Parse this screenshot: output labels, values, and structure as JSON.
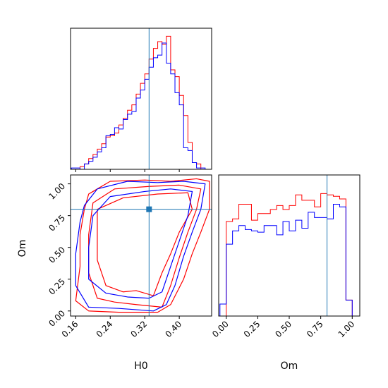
{
  "chart_data": {
    "type": "corner",
    "parameters": [
      "H0",
      "Om"
    ],
    "truths": {
      "H0": 0.33,
      "Om": 0.8
    },
    "colors": {
      "series_a": "#ff0000",
      "series_b": "#0000ff",
      "truth": "#1f77b4",
      "frame": "#000000"
    },
    "panels": [
      {
        "kind": "histogram",
        "param": "H0",
        "xlim": [
          0.148,
          0.475
        ],
        "ylim": [
          0,
          1.05
        ],
        "bin_edges": [
          0.15,
          0.16,
          0.17,
          0.18,
          0.19,
          0.2,
          0.21,
          0.22,
          0.23,
          0.24,
          0.25,
          0.26,
          0.27,
          0.28,
          0.29,
          0.3,
          0.31,
          0.32,
          0.33,
          0.34,
          0.35,
          0.36,
          0.37,
          0.38,
          0.39,
          0.4,
          0.41,
          0.42,
          0.43,
          0.44,
          0.45,
          0.46,
          0.47
        ],
        "series": [
          {
            "color_key": "series_a",
            "values": [
              0.0,
              0.0,
              0.02,
              0.04,
              0.08,
              0.11,
              0.15,
              0.19,
              0.24,
              0.25,
              0.27,
              0.33,
              0.38,
              0.44,
              0.48,
              0.56,
              0.64,
              0.71,
              0.82,
              0.9,
              0.95,
              0.93,
              0.99,
              0.74,
              0.69,
              0.55,
              0.4,
              0.2,
              0.05,
              0.04,
              0.0,
              0.0
            ]
          },
          {
            "color_key": "series_b",
            "values": [
              0.01,
              0.01,
              0.0,
              0.04,
              0.06,
              0.09,
              0.13,
              0.16,
              0.25,
              0.26,
              0.31,
              0.3,
              0.37,
              0.41,
              0.43,
              0.53,
              0.59,
              0.67,
              0.76,
              0.83,
              0.85,
              0.94,
              0.79,
              0.71,
              0.57,
              0.48,
              0.16,
              0.14,
              0.05,
              0.01,
              0.01,
              0.0
            ]
          }
        ]
      },
      {
        "kind": "contour",
        "xparam": "H0",
        "yparam": "Om",
        "xlim": [
          0.148,
          0.475
        ],
        "ylim": [
          -0.04,
          1.07
        ],
        "xticks": [
          0.16,
          0.24,
          0.32,
          0.4
        ],
        "xtick_labels": [
          "0.16",
          "0.24",
          "0.32",
          "0.40"
        ],
        "yticks": [
          0.0,
          0.25,
          0.5,
          0.75,
          1.0
        ],
        "ytick_labels": [
          "0.00",
          "0.25",
          "0.50",
          "0.75",
          "1.00"
        ],
        "xlabel": "H0",
        "ylabel": "Om",
        "truth_marker": {
          "x": 0.33,
          "y": 0.8
        },
        "contours": [
          {
            "color_key": "series_a",
            "points": [
              [
                0.19,
                0.92
              ],
              [
                0.24,
                1.02
              ],
              [
                0.32,
                1.03
              ],
              [
                0.38,
                1.02
              ],
              [
                0.44,
                1.04
              ],
              [
                0.47,
                1.02
              ],
              [
                0.47,
                0.8
              ],
              [
                0.45,
                0.62
              ],
              [
                0.43,
                0.45
              ],
              [
                0.41,
                0.25
              ],
              [
                0.38,
                0.05
              ],
              [
                0.35,
                -0.01
              ],
              [
                0.26,
                -0.01
              ],
              [
                0.19,
                0.0
              ],
              [
                0.16,
                0.08
              ],
              [
                0.17,
                0.35
              ],
              [
                0.17,
                0.6
              ],
              [
                0.18,
                0.8
              ]
            ]
          },
          {
            "color_key": "series_a",
            "points": [
              [
                0.2,
                0.85
              ],
              [
                0.25,
                0.96
              ],
              [
                0.33,
                0.98
              ],
              [
                0.4,
                0.99
              ],
              [
                0.45,
                0.96
              ],
              [
                0.44,
                0.8
              ],
              [
                0.42,
                0.62
              ],
              [
                0.4,
                0.42
              ],
              [
                0.38,
                0.2
              ],
              [
                0.36,
                0.03
              ],
              [
                0.3,
                0.05
              ],
              [
                0.25,
                0.07
              ],
              [
                0.21,
                0.1
              ],
              [
                0.19,
                0.3
              ],
              [
                0.19,
                0.6
              ]
            ]
          },
          {
            "color_key": "series_a",
            "points": [
              [
                0.21,
                0.8
              ],
              [
                0.27,
                0.89
              ],
              [
                0.35,
                0.92
              ],
              [
                0.42,
                0.93
              ],
              [
                0.43,
                0.8
              ],
              [
                0.4,
                0.62
              ],
              [
                0.38,
                0.45
              ],
              [
                0.36,
                0.3
              ],
              [
                0.34,
                0.12
              ],
              [
                0.3,
                0.16
              ],
              [
                0.27,
                0.15
              ],
              [
                0.23,
                0.2
              ],
              [
                0.21,
                0.4
              ],
              [
                0.21,
                0.62
              ]
            ]
          },
          {
            "color_key": "series_b",
            "points": [
              [
                0.18,
                0.83
              ],
              [
                0.21,
                0.96
              ],
              [
                0.28,
                1.02
              ],
              [
                0.35,
                1.01
              ],
              [
                0.41,
                1.02
              ],
              [
                0.46,
                1.0
              ],
              [
                0.45,
                0.8
              ],
              [
                0.43,
                0.62
              ],
              [
                0.41,
                0.43
              ],
              [
                0.39,
                0.2
              ],
              [
                0.37,
                0.05
              ],
              [
                0.34,
                0.0
              ],
              [
                0.26,
                0.02
              ],
              [
                0.19,
                0.03
              ],
              [
                0.16,
                0.2
              ],
              [
                0.16,
                0.45
              ],
              [
                0.17,
                0.7
              ]
            ]
          },
          {
            "color_key": "series_b",
            "points": [
              [
                0.2,
                0.75
              ],
              [
                0.24,
                0.9
              ],
              [
                0.32,
                0.94
              ],
              [
                0.38,
                0.96
              ],
              [
                0.43,
                0.94
              ],
              [
                0.42,
                0.75
              ],
              [
                0.4,
                0.55
              ],
              [
                0.38,
                0.35
              ],
              [
                0.36,
                0.15
              ],
              [
                0.33,
                0.1
              ],
              [
                0.28,
                0.11
              ],
              [
                0.23,
                0.14
              ],
              [
                0.19,
                0.25
              ],
              [
                0.19,
                0.5
              ]
            ]
          }
        ]
      },
      {
        "kind": "histogram",
        "param": "Om",
        "xlim": [
          -0.06,
          1.06
        ],
        "ylim": [
          0,
          1.06
        ],
        "xticks": [
          0.0,
          0.25,
          0.5,
          0.75,
          1.0
        ],
        "xtick_labels": [
          "0.00",
          "0.25",
          "0.50",
          "0.75",
          "1.00"
        ],
        "xlabel": "Om",
        "bin_edges": [
          -0.05,
          0.0,
          0.05,
          0.1,
          0.15,
          0.2,
          0.25,
          0.3,
          0.35,
          0.4,
          0.45,
          0.5,
          0.55,
          0.6,
          0.65,
          0.7,
          0.75,
          0.8,
          0.85,
          0.9,
          0.95,
          1.0,
          1.05
        ],
        "series": [
          {
            "color_key": "series_a",
            "values": [
              0.0,
              0.71,
              0.73,
              0.84,
              0.84,
              0.72,
              0.77,
              0.77,
              0.8,
              0.83,
              0.8,
              0.83,
              0.91,
              0.87,
              0.87,
              0.82,
              0.92,
              0.91,
              0.9,
              0.88,
              0.12,
              0.0
            ]
          },
          {
            "color_key": "series_b",
            "values": [
              0.09,
              0.54,
              0.64,
              0.68,
              0.65,
              0.64,
              0.63,
              0.68,
              0.68,
              0.61,
              0.71,
              0.64,
              0.72,
              0.66,
              0.78,
              0.74,
              0.74,
              0.73,
              0.84,
              0.82,
              0.12,
              0.0
            ]
          }
        ]
      }
    ]
  }
}
